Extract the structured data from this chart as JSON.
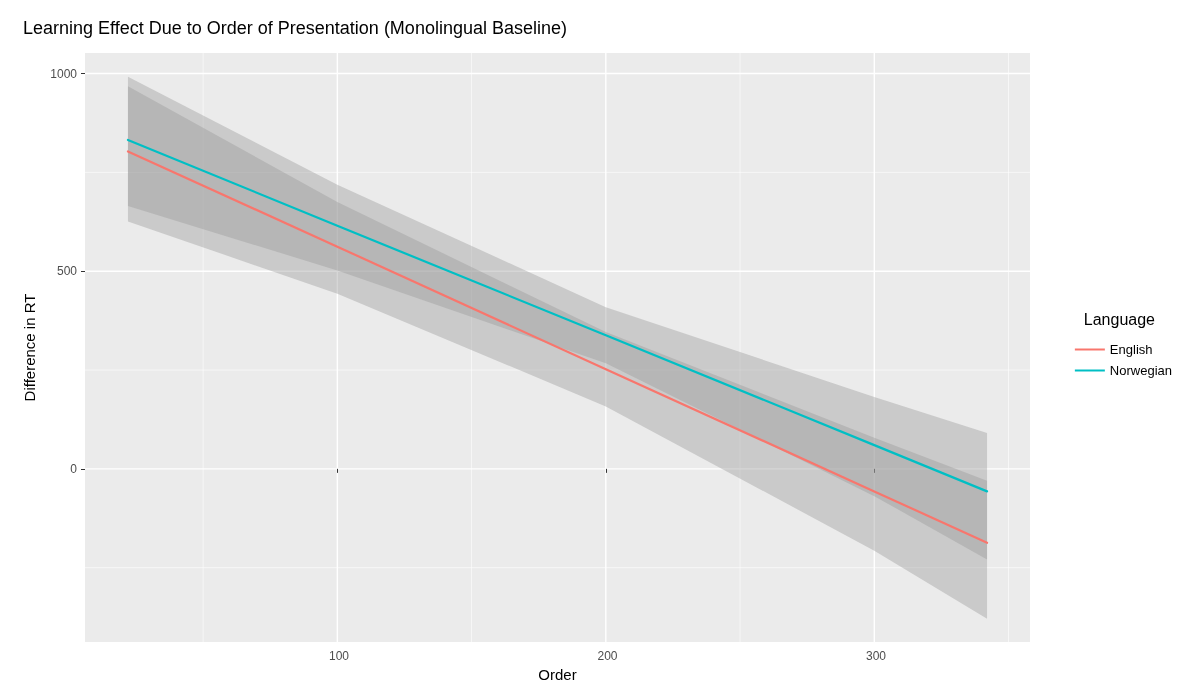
{
  "chart_data": {
    "type": "line",
    "title": "Learning Effect Due to Order of Presentation (Monolingual Baseline)",
    "xlabel": "Order",
    "ylabel": "Difference in RT",
    "legend_title": "Language",
    "legend": "right",
    "grid": true,
    "marker": "none",
    "line_style": "solid",
    "x": [
      22,
      100,
      200,
      300,
      342
    ],
    "xlim": [
      6,
      358
    ],
    "xticks": [
      {
        "value": 50,
        "label": null
      },
      100,
      {
        "value": 150,
        "label": null
      },
      200,
      {
        "value": 250,
        "label": null
      },
      300,
      {
        "value": 350,
        "label": null
      }
    ],
    "ylim": [
      -438,
      1052
    ],
    "yticks": [
      {
        "value": -250,
        "label": null
      },
      0,
      {
        "value": 250,
        "label": null
      },
      500,
      {
        "value": 750,
        "label": null
      },
      1000
    ],
    "series": [
      {
        "name": "English",
        "color": "#f8766d",
        "values": [
          803,
          562,
          252,
          -57,
          -187
        ],
        "lower": [
          626,
          443,
          158,
          -207,
          -379
        ],
        "upper": [
          968,
          675,
          346,
          79,
          -30
        ]
      },
      {
        "name": "Norwegian",
        "color": "#00bfc4",
        "values": [
          832,
          615,
          338,
          60,
          -57
        ],
        "lower": [
          665,
          502,
          267,
          -69,
          -229
        ],
        "upper": [
          992,
          719,
          409,
          182,
          91
        ]
      }
    ]
  }
}
